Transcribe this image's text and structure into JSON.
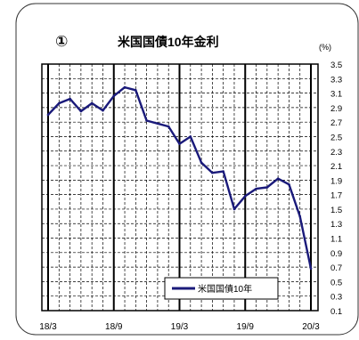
{
  "chart_data": {
    "type": "line",
    "panel_marker": "①",
    "title": "米国国債10年金利",
    "unit_label": "(%)",
    "xlabel": "",
    "ylabel": "",
    "x_tick_labels": [
      "18/3",
      "18/9",
      "19/3",
      "19/9",
      "20/3"
    ],
    "y_tick_labels": [
      "3.5",
      "3.3",
      "3.1",
      "2.9",
      "2.7",
      "2.5",
      "2.3",
      "2.1",
      "1.9",
      "1.7",
      "1.5",
      "1.3",
      "1.1",
      "0.9",
      "0.7",
      "0.5",
      "0.3",
      "0.1"
    ],
    "ylim": [
      0.1,
      3.5
    ],
    "y_axis_side": "right",
    "grid": true,
    "legend_position": "bottom-right",
    "series": [
      {
        "name": "米国国債10年",
        "color": "#1a1a7a",
        "x": [
          "18/3",
          "18/4",
          "18/5",
          "18/6",
          "18/7",
          "18/8",
          "18/9",
          "18/10",
          "18/11",
          "18/12",
          "19/1",
          "19/2",
          "19/3",
          "19/4",
          "19/5",
          "19/6",
          "19/7",
          "19/8",
          "19/9",
          "19/10",
          "19/11",
          "19/12",
          "20/1",
          "20/2",
          "20/3"
        ],
        "values": [
          2.8,
          2.96,
          3.02,
          2.85,
          2.96,
          2.86,
          3.06,
          3.18,
          3.14,
          2.72,
          2.68,
          2.64,
          2.4,
          2.5,
          2.14,
          2.0,
          2.02,
          1.5,
          1.68,
          1.78,
          1.8,
          1.92,
          1.84,
          1.4,
          0.68
        ]
      }
    ]
  }
}
